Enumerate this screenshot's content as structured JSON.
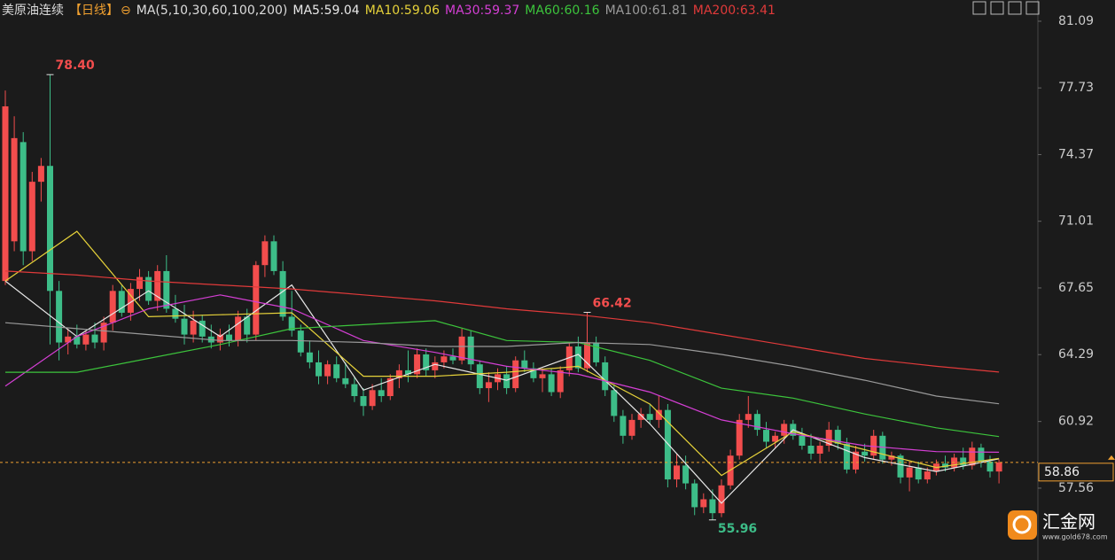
{
  "header": {
    "symbol": "美原油连续",
    "period": "【日线】",
    "ma_title": "MA(5,10,30,60,100,200)"
  },
  "chart_data": {
    "type": "candlestick",
    "ohlc": [
      [
        68,
        77.6,
        67.8,
        76.8
      ],
      [
        70,
        76.3,
        69.5,
        75.2
      ],
      [
        75,
        75.5,
        68.8,
        69.5
      ],
      [
        69.5,
        73.5,
        69,
        73
      ],
      [
        73,
        74.2,
        72,
        73.8
      ],
      [
        73.8,
        78.4,
        64.8,
        67.5
      ],
      [
        67.5,
        68,
        64,
        64.9
      ],
      [
        64.9,
        65.6,
        64.3,
        65.2
      ],
      [
        65.2,
        65.8,
        64.6,
        64.8
      ],
      [
        64.8,
        65.5,
        64.5,
        65.3
      ],
      [
        65.3,
        65.9,
        64.6,
        64.9
      ],
      [
        64.9,
        66.2,
        64.5,
        65.9
      ],
      [
        65.9,
        67.8,
        65.5,
        67.5
      ],
      [
        67.5,
        67.8,
        66.2,
        66.4
      ],
      [
        66.4,
        67.9,
        66,
        67.6
      ],
      [
        67.6,
        68.6,
        67,
        68.2
      ],
      [
        68.2,
        68.5,
        66.8,
        67
      ],
      [
        67,
        68.8,
        66.5,
        68.5
      ],
      [
        68.5,
        69.3,
        66.4,
        66.6
      ],
      [
        66.6,
        67.3,
        65.9,
        66.1
      ],
      [
        66.1,
        66.8,
        64.8,
        65.3
      ],
      [
        65.3,
        66.5,
        64.9,
        66
      ],
      [
        66,
        66.3,
        64.9,
        65.2
      ],
      [
        65.2,
        65.8,
        64.6,
        64.9
      ],
      [
        64.9,
        65.6,
        64.5,
        65.3
      ],
      [
        65.3,
        65.8,
        64.7,
        65
      ],
      [
        65,
        66.5,
        64.7,
        66.2
      ],
      [
        66.2,
        66.6,
        64.9,
        65.3
      ],
      [
        65.3,
        69,
        65,
        68.8
      ],
      [
        68.8,
        70.3,
        68.2,
        70
      ],
      [
        70,
        70.3,
        68.3,
        68.5
      ],
      [
        68.5,
        69,
        66,
        66.2
      ],
      [
        66.2,
        67.5,
        65.2,
        65.5
      ],
      [
        65.5,
        65.8,
        64.2,
        64.4
      ],
      [
        64.4,
        65,
        63.6,
        63.9
      ],
      [
        63.9,
        64.5,
        62.8,
        63.2
      ],
      [
        63.2,
        64,
        62.8,
        63.8
      ],
      [
        63.8,
        64.2,
        62.9,
        63.1
      ],
      [
        63.1,
        63.9,
        62.6,
        62.8
      ],
      [
        62.8,
        63.2,
        61.9,
        62.2
      ],
      [
        62.2,
        62.6,
        61.2,
        61.7
      ],
      [
        61.7,
        62.8,
        61.5,
        62.5
      ],
      [
        62.5,
        63.1,
        61.9,
        62.2
      ],
      [
        62.2,
        63.3,
        62,
        63.1
      ],
      [
        63.1,
        63.8,
        62.6,
        63.5
      ],
      [
        63.5,
        64.5,
        62.9,
        63.3
      ],
      [
        63.3,
        64.6,
        63.1,
        64.3
      ],
      [
        64.3,
        64.6,
        63.2,
        63.5
      ],
      [
        63.5,
        64.2,
        63.1,
        63.9
      ],
      [
        63.9,
        64.5,
        63.6,
        64.2
      ],
      [
        64.2,
        64.6,
        63.8,
        64
      ],
      [
        64,
        65.6,
        63.8,
        65.2
      ],
      [
        65.2,
        65.5,
        63.5,
        63.8
      ],
      [
        63.8,
        64,
        62.3,
        62.6
      ],
      [
        62.6,
        63.4,
        61.9,
        62.9
      ],
      [
        62.9,
        63.6,
        62.5,
        63.3
      ],
      [
        63.3,
        63.7,
        62.3,
        62.6
      ],
      [
        62.6,
        64.2,
        62.4,
        64
      ],
      [
        64,
        64.5,
        63.4,
        63.6
      ],
      [
        63.6,
        63.9,
        62.9,
        63.1
      ],
      [
        63.1,
        63.6,
        62.4,
        63.3
      ],
      [
        63.3,
        63.6,
        62.2,
        62.4
      ],
      [
        62.4,
        63.7,
        62.1,
        63.5
      ],
      [
        63.5,
        64.9,
        63.2,
        64.7
      ],
      [
        64.7,
        65.2,
        63.4,
        63.6
      ],
      [
        63.6,
        66.42,
        63.4,
        64.9
      ],
      [
        64.9,
        65.2,
        63.7,
        63.9
      ],
      [
        63.9,
        64.2,
        62.2,
        62.5
      ],
      [
        62.5,
        62.8,
        60.9,
        61.2
      ],
      [
        61.2,
        61.5,
        59.8,
        60.2
      ],
      [
        60.2,
        61.3,
        60,
        61
      ],
      [
        61,
        61.6,
        60.6,
        61.3
      ],
      [
        61.3,
        61.8,
        60.8,
        61
      ],
      [
        61,
        62.2,
        60.6,
        61.5
      ],
      [
        61.5,
        61.8,
        57.6,
        58
      ],
      [
        58,
        59.3,
        57.6,
        58.7
      ],
      [
        58.7,
        59.2,
        57.5,
        57.8
      ],
      [
        57.8,
        58,
        56.2,
        56.6
      ],
      [
        56.6,
        57.3,
        56.3,
        57
      ],
      [
        57,
        57.5,
        55.96,
        56.3
      ],
      [
        56.3,
        58,
        56.1,
        57.7
      ],
      [
        57.7,
        59.5,
        57.5,
        59.2
      ],
      [
        59.2,
        61.3,
        59,
        61
      ],
      [
        61,
        62.2,
        60.6,
        61.3
      ],
      [
        61.3,
        61.5,
        60.2,
        60.5
      ],
      [
        60.5,
        60.9,
        59.6,
        59.9
      ],
      [
        59.9,
        60.4,
        59.6,
        60.2
      ],
      [
        60.2,
        61,
        59.8,
        60.8
      ],
      [
        60.8,
        61,
        60,
        60.2
      ],
      [
        60.2,
        60.6,
        59.5,
        59.7
      ],
      [
        59.7,
        60.3,
        59,
        59.3
      ],
      [
        59.3,
        59.9,
        58.9,
        59.7
      ],
      [
        59.7,
        60.9,
        59.4,
        60.5
      ],
      [
        60.5,
        60.7,
        59.5,
        59.8
      ],
      [
        59.8,
        60.1,
        58.3,
        58.5
      ],
      [
        58.5,
        59.7,
        58.3,
        59.4
      ],
      [
        59.4,
        59.8,
        58.9,
        59.2
      ],
      [
        59.2,
        60.5,
        59,
        60.2
      ],
      [
        60.2,
        60.4,
        58.8,
        59
      ],
      [
        59,
        59.4,
        58.7,
        59.2
      ],
      [
        59.2,
        59.3,
        57.8,
        58.1
      ],
      [
        58.1,
        58.9,
        57.4,
        58.6
      ],
      [
        58.6,
        58.9,
        57.8,
        58
      ],
      [
        58,
        58.6,
        57.8,
        58.4
      ],
      [
        58.4,
        59,
        58.2,
        58.8
      ],
      [
        58.8,
        59.2,
        58.4,
        58.6
      ],
      [
        58.6,
        59.3,
        58.4,
        59.1
      ],
      [
        59.1,
        59.6,
        58.5,
        58.7
      ],
      [
        58.7,
        59.9,
        58.5,
        59.6
      ],
      [
        59.6,
        59.8,
        58.6,
        58.9
      ],
      [
        58.9,
        59.2,
        58.1,
        58.4
      ],
      [
        58.4,
        59,
        57.8,
        58.86
      ]
    ],
    "up_color": "#f24d4d",
    "down_color": "#3dbd88",
    "ylim": [
      53.94,
      82.16
    ],
    "yticks": [
      81.09,
      77.73,
      74.37,
      71.01,
      67.65,
      64.29,
      60.92,
      57.56
    ],
    "last_price": 58.86,
    "last_price_color": "#f0a030",
    "series": [
      {
        "name": "MA5:59.04",
        "color": "#e8e8e8",
        "x": [
          0,
          8,
          16,
          24,
          32,
          40,
          48,
          56,
          64,
          72,
          80,
          88,
          96,
          104,
          111
        ],
        "values": [
          68,
          65.2,
          67.5,
          65.2,
          67.8,
          62.5,
          63.8,
          63,
          64.3,
          60.8,
          56.8,
          60.5,
          59.1,
          58.4,
          59.04
        ]
      },
      {
        "name": "MA10:59.06",
        "color": "#e6d23a",
        "x": [
          0,
          8,
          16,
          24,
          32,
          40,
          48,
          56,
          64,
          72,
          80,
          88,
          96,
          104,
          111
        ],
        "values": [
          68,
          70.5,
          66.2,
          66.3,
          66.4,
          63.2,
          63.2,
          63.4,
          63.7,
          61.8,
          58.2,
          60.4,
          59.5,
          58.6,
          59.06
        ]
      },
      {
        "name": "MA30:59.37",
        "color": "#d43fd4",
        "x": [
          0,
          8,
          16,
          24,
          32,
          40,
          48,
          56,
          64,
          72,
          80,
          88,
          96,
          104,
          111
        ],
        "values": [
          62.7,
          65.2,
          66.6,
          67.3,
          66.6,
          65,
          64.4,
          63.7,
          63.3,
          62.4,
          61,
          60.3,
          59.7,
          59.4,
          59.37
        ]
      },
      {
        "name": "MA60:60.16",
        "color": "#3cc43c",
        "x": [
          0,
          8,
          16,
          24,
          32,
          40,
          48,
          56,
          64,
          72,
          80,
          88,
          96,
          104,
          111
        ],
        "values": [
          63.4,
          63.4,
          64.1,
          64.8,
          65.6,
          65.8,
          66,
          65,
          64.9,
          64,
          62.6,
          62.1,
          61.3,
          60.6,
          60.16
        ]
      },
      {
        "name": "MA100:61.81",
        "color": "#9a9a9a",
        "x": [
          0,
          8,
          16,
          24,
          32,
          40,
          48,
          56,
          64,
          72,
          80,
          88,
          96,
          104,
          111
        ],
        "values": [
          65.9,
          65.6,
          65.3,
          65,
          65,
          64.9,
          64.7,
          64.7,
          64.9,
          64.8,
          64.3,
          63.7,
          63,
          62.2,
          61.81
        ]
      },
      {
        "name": "MA200:63.41",
        "color": "#e03a3a",
        "x": [
          0,
          8,
          16,
          24,
          32,
          40,
          48,
          56,
          64,
          72,
          80,
          88,
          96,
          104,
          111
        ],
        "values": [
          68.5,
          68.3,
          68,
          67.8,
          67.6,
          67.3,
          67,
          66.6,
          66.3,
          65.9,
          65.3,
          64.7,
          64.1,
          63.7,
          63.41
        ]
      }
    ],
    "annotations": [
      {
        "index": 5,
        "value": 78.4,
        "label": "78.40",
        "color": "#f24d4d"
      },
      {
        "index": 65,
        "value": 66.42,
        "label": "66.42",
        "color": "#f24d4d"
      },
      {
        "index": 79,
        "value": 55.96,
        "label": "55.96",
        "color": "#3dbd88"
      }
    ]
  },
  "logo": {
    "name": "汇金网",
    "url": "www.gold678.com"
  }
}
